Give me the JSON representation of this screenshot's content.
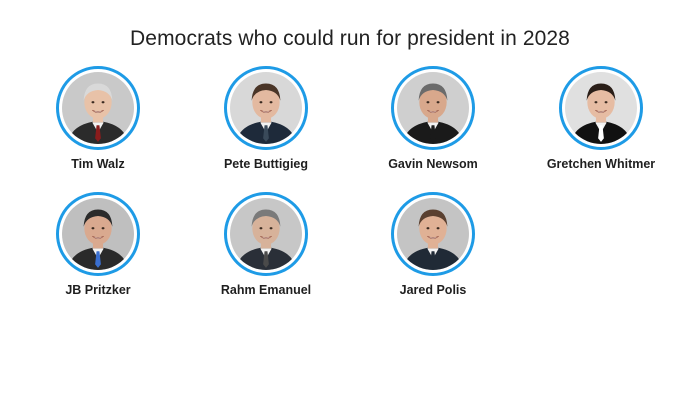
{
  "title": "Democrats who could run for president in 2028",
  "accent_color": "#1e9be6",
  "people": [
    {
      "name": "Tim Walz",
      "icon": "portrait-icon",
      "hair": "#d9d9d9",
      "skin": "#e8c2a8",
      "bg": "#c9c9c9",
      "suit": "#2b2b2b",
      "tie": "#8b1c1c"
    },
    {
      "name": "Pete Buttigieg",
      "icon": "portrait-icon",
      "hair": "#4a3527",
      "skin": "#e3b9a0",
      "bg": "#d8d8d8",
      "suit": "#1e2a3a",
      "tie": "#3a4a5a"
    },
    {
      "name": "Gavin Newsom",
      "icon": "portrait-icon",
      "hair": "#6b6b6b",
      "skin": "#d8a88c",
      "bg": "#cfcfcf",
      "suit": "#1a1a1a",
      "tie": "#1a1a1a"
    },
    {
      "name": "Gretchen Whitmer",
      "icon": "portrait-icon",
      "hair": "#2a1e18",
      "skin": "#e6bca3",
      "bg": "#e0e0e0",
      "suit": "#111111",
      "tie": "#ffffff"
    },
    {
      "name": "JB Pritzker",
      "icon": "portrait-icon",
      "hair": "#2b2b2b",
      "skin": "#d9a98f",
      "bg": "#bfbfbf",
      "suit": "#2a2a2a",
      "tie": "#3a6fd0"
    },
    {
      "name": "Rahm Emanuel",
      "icon": "portrait-icon",
      "hair": "#7a7a7a",
      "skin": "#d7b29a",
      "bg": "#c7c7c7",
      "suit": "#2a2f38",
      "tie": "#4a4a4a"
    },
    {
      "name": "Jared Polis",
      "icon": "portrait-icon",
      "hair": "#5a4030",
      "skin": "#e0b195",
      "bg": "#c4c4c4",
      "suit": "#202a36",
      "tie": "#202a36"
    }
  ]
}
